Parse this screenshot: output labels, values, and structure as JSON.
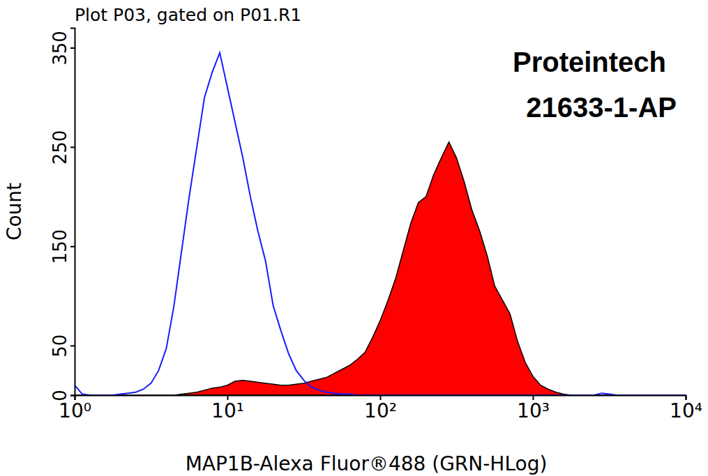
{
  "chart_data": {
    "type": "line",
    "title": "Plot P03, gated on P01.R1",
    "x_label": "MAP1B-Alexa Fluor®488 (GRN-HLog)",
    "y_label": "Count",
    "annotations": [
      "Proteintech",
      "21633-1-AP"
    ],
    "log": "x",
    "xlim": [
      1,
      10000
    ],
    "ylim": [
      0,
      370
    ],
    "xticks": [
      {
        "value": 1,
        "label": "10⁰"
      },
      {
        "value": 10,
        "label": "10¹"
      },
      {
        "value": 100,
        "label": "10²"
      },
      {
        "value": 1000,
        "label": "10³"
      },
      {
        "value": 10000,
        "label": "10⁴"
      }
    ],
    "yticks": [
      0,
      50,
      150,
      250,
      350
    ],
    "x": [
      1,
      1.122,
      1.259,
      1.413,
      1.585,
      1.778,
      1.995,
      2.239,
      2.512,
      2.818,
      3.162,
      3.548,
      3.981,
      4.467,
      5.012,
      5.623,
      6.31,
      7.079,
      7.943,
      8.913,
      10,
      11.22,
      12.59,
      14.13,
      15.85,
      17.78,
      19.95,
      22.39,
      25.12,
      28.18,
      31.62,
      35.48,
      39.81,
      44.67,
      50.12,
      56.23,
      63.1,
      70.79,
      79.43,
      89.13,
      100,
      112.2,
      125.9,
      141.3,
      158.5,
      177.8,
      199.5,
      223.9,
      251.2,
      281.8,
      316.2,
      354.8,
      398.1,
      446.7,
      501.2,
      562.3,
      631,
      707.9,
      794.3,
      891.3,
      1000,
      1122,
      1259,
      1413,
      1585,
      1778,
      1995,
      2239,
      2512,
      2818,
      3162,
      3548,
      3981,
      4467,
      5012,
      5623,
      6310,
      7079,
      7943,
      8913,
      10000
    ],
    "series": [
      {
        "type": "area",
        "color": "#ff0000",
        "values": [
          0,
          0,
          0,
          0,
          0,
          0,
          0,
          0,
          0,
          0,
          0,
          0,
          0,
          0,
          1,
          2,
          3,
          5,
          7,
          8,
          10,
          14,
          15,
          14,
          13,
          12,
          11,
          10,
          10,
          11,
          12,
          14,
          16,
          18,
          22,
          26,
          30,
          36,
          43,
          58,
          75,
          95,
          117,
          145,
          173,
          194,
          200,
          222,
          239,
          255,
          239,
          215,
          187,
          166,
          141,
          110,
          96,
          82,
          54,
          33,
          19,
          10,
          6,
          3,
          1,
          0,
          0,
          0,
          0,
          0,
          0,
          0,
          0,
          0,
          0,
          0,
          0,
          0,
          0,
          0,
          0
        ]
      },
      {
        "type": "line",
        "color": "#1a1aff",
        "values": [
          10,
          1,
          0,
          0,
          0,
          0,
          1,
          2,
          3,
          6,
          12,
          25,
          47,
          90,
          145,
          200,
          250,
          300,
          325,
          345,
          310,
          275,
          240,
          200,
          165,
          135,
          90,
          65,
          42,
          25,
          15,
          8,
          5,
          3,
          2,
          1,
          1,
          0,
          0,
          0,
          0,
          0,
          0,
          0,
          0,
          0,
          0,
          0,
          0,
          0,
          0,
          0,
          0,
          0,
          0,
          0,
          0,
          0,
          0,
          0,
          0,
          0,
          0,
          0,
          0,
          0,
          0,
          0,
          0,
          2,
          1,
          0,
          0,
          0,
          0,
          0,
          0,
          0,
          0,
          0,
          0
        ]
      }
    ]
  }
}
